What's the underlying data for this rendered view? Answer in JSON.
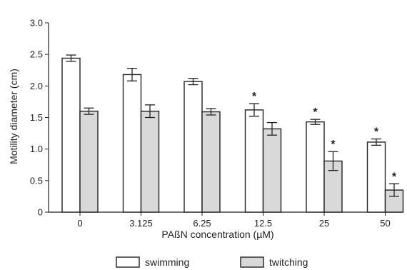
{
  "chart_data": {
    "type": "bar",
    "xlabel": "PAßN concentration (µM)",
    "ylabel": "Motility diameter (cm)",
    "ylim": [
      0,
      3.0
    ],
    "yticks": [
      "0",
      "0.5",
      "1.0",
      "1.5",
      "2.0",
      "2.5",
      "3.0"
    ],
    "categories": [
      "0",
      "3.125",
      "6.25",
      "12.5",
      "25",
      "50"
    ],
    "series": [
      {
        "name": "swimming",
        "color": "#ffffff",
        "values": [
          2.44,
          2.18,
          2.07,
          1.62,
          1.43,
          1.11
        ],
        "errors": [
          0.05,
          0.1,
          0.05,
          0.1,
          0.04,
          0.05
        ],
        "significant": [
          false,
          false,
          false,
          true,
          true,
          true
        ]
      },
      {
        "name": "twitching",
        "color": "#d9d9d9",
        "values": [
          1.6,
          1.6,
          1.59,
          1.32,
          0.81,
          0.35
        ],
        "errors": [
          0.05,
          0.1,
          0.05,
          0.1,
          0.15,
          0.1
        ],
        "significant": [
          false,
          false,
          false,
          false,
          true,
          true
        ]
      }
    ],
    "significance_marker": "*",
    "legend_position": "bottom",
    "grid": false
  }
}
